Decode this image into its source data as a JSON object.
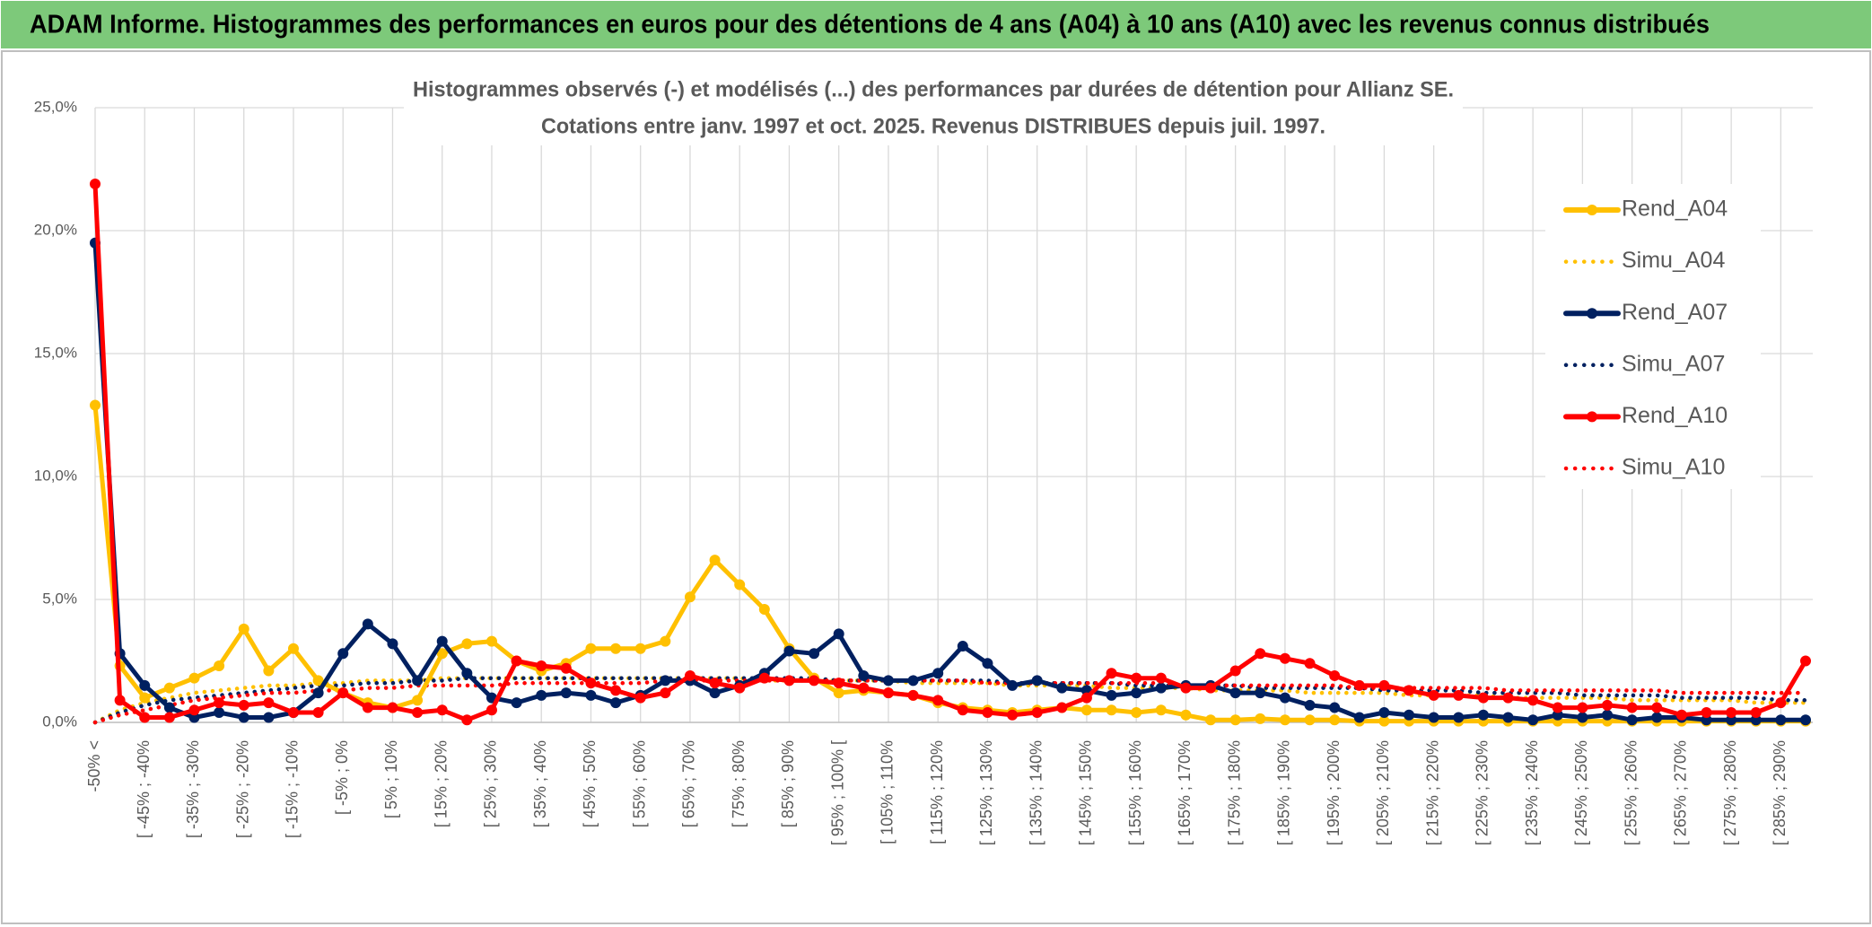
{
  "header": {
    "title": "ADAM Informe. Histogrammes des performances en euros pour des détentions de 4 ans (A04) à 10 ans (A10) avec les revenus connus distribués"
  },
  "chart_data": {
    "type": "line",
    "title": [
      "Histogrammes observés (-) et modélisés (...) des performances par durées de détention pour Allianz SE.",
      "Cotations entre janv. 1997 et oct. 2025. Revenus DISTRIBUES depuis juil. 1997."
    ],
    "categories": [
      "-50% <",
      null,
      "[ -45% ; -40%",
      null,
      "[ -35% ; -30%",
      null,
      "[ -25% ; -20%",
      null,
      "[ -15% ; -10%",
      null,
      "[ -5% ; 0%",
      null,
      "[ 5% ; 10%",
      null,
      "[ 15% ; 20%",
      null,
      "[ 25% ; 30%",
      null,
      "[ 35% ; 40%",
      null,
      "[ 45% ; 50%",
      null,
      "[ 55% ; 60%",
      null,
      "[ 65% ; 70%",
      null,
      "[ 75% ; 80%",
      null,
      "[ 85% ; 90%",
      null,
      "[ 95% ; 100% [",
      null,
      "[ 105% ; 110%",
      null,
      "[ 115% ; 120%",
      null,
      "[ 125% ; 130%",
      null,
      "[ 135% ; 140%",
      null,
      "[ 145% ; 150%",
      null,
      "[ 155% ; 160%",
      null,
      "[ 165% ; 170%",
      null,
      "[ 175% ; 180%",
      null,
      "[ 185% ; 190%",
      null,
      "[ 195% ; 200%",
      null,
      "[ 205% ; 210%",
      null,
      "[ 215% ; 220%",
      null,
      "[ 225% ; 230%",
      null,
      "[ 235% ; 240%",
      null,
      "[ 245% ; 250%",
      null,
      "[ 255% ; 260%",
      null,
      "[ 265% ; 270%",
      null,
      "[ 275% ; 280%",
      null,
      "[ 285% ; 290%",
      null
    ],
    "ylim": [
      0,
      25
    ],
    "yticks": [
      {
        "value": 0,
        "label": "0,0%"
      },
      {
        "value": 5,
        "label": "5,0%"
      },
      {
        "value": 10,
        "label": "10,0%"
      },
      {
        "value": 15,
        "label": "15,0%"
      },
      {
        "value": 20,
        "label": "20,0%"
      },
      {
        "value": 25,
        "label": "25,0%"
      }
    ],
    "grid": true,
    "legend": "right",
    "series": [
      {
        "name": "Rend_A04",
        "color": "#ffc000",
        "line_style": "solid",
        "marker": true,
        "values": [
          12.9,
          2.3,
          1.0,
          1.4,
          1.8,
          2.3,
          3.8,
          2.1,
          3.0,
          1.7,
          1.2,
          0.8,
          0.6,
          0.9,
          2.8,
          3.2,
          3.3,
          2.5,
          2.1,
          2.4,
          3.0,
          3.0,
          3.0,
          3.3,
          5.1,
          6.6,
          5.6,
          4.6,
          3.0,
          1.8,
          1.2,
          1.3,
          1.2,
          1.1,
          0.8,
          0.6,
          0.5,
          0.4,
          0.5,
          0.6,
          0.5,
          0.5,
          0.4,
          0.5,
          0.3,
          0.1,
          0.1,
          0.15,
          0.1,
          0.1,
          0.1,
          0.05,
          0.05,
          0.05,
          0.05,
          0.05,
          0.05,
          0.05,
          0.05,
          0.05,
          0.05,
          0.05,
          0.05,
          0.05,
          0.05,
          0.05,
          0.05,
          0.05,
          0.05,
          0.05
        ]
      },
      {
        "name": "Simu_A04",
        "color": "#ffc000",
        "line_style": "dotted",
        "marker": false,
        "values": [
          0,
          0.5,
          0.8,
          1.0,
          1.2,
          1.3,
          1.4,
          1.5,
          1.5,
          1.6,
          1.6,
          1.7,
          1.7,
          1.7,
          1.8,
          1.8,
          1.8,
          1.8,
          1.8,
          1.8,
          1.8,
          1.8,
          1.8,
          1.8,
          1.8,
          1.8,
          1.8,
          1.7,
          1.7,
          1.7,
          1.7,
          1.7,
          1.7,
          1.6,
          1.6,
          1.6,
          1.6,
          1.5,
          1.5,
          1.5,
          1.5,
          1.4,
          1.4,
          1.4,
          1.4,
          1.3,
          1.3,
          1.3,
          1.3,
          1.2,
          1.2,
          1.2,
          1.2,
          1.1,
          1.1,
          1.1,
          1.1,
          1.0,
          1.0,
          1.0,
          1.0,
          1.0,
          0.9,
          0.9,
          0.9,
          0.9,
          0.9,
          0.8,
          0.8,
          0.8
        ]
      },
      {
        "name": "Rend_A07",
        "color": "#002060",
        "line_style": "solid",
        "marker": true,
        "values": [
          19.5,
          2.8,
          1.5,
          0.6,
          0.2,
          0.4,
          0.2,
          0.2,
          0.4,
          1.2,
          2.8,
          4.0,
          3.2,
          1.7,
          3.3,
          2.0,
          1.0,
          0.8,
          1.1,
          1.2,
          1.1,
          0.8,
          1.1,
          1.7,
          1.7,
          1.2,
          1.5,
          2.0,
          2.9,
          2.8,
          3.6,
          1.9,
          1.7,
          1.7,
          2.0,
          3.1,
          2.4,
          1.5,
          1.7,
          1.4,
          1.3,
          1.1,
          1.2,
          1.4,
          1.5,
          1.5,
          1.2,
          1.2,
          1.0,
          0.7,
          0.6,
          0.2,
          0.4,
          0.3,
          0.2,
          0.2,
          0.3,
          0.2,
          0.1,
          0.3,
          0.2,
          0.3,
          0.1,
          0.2,
          0.2,
          0.1,
          0.1,
          0.1,
          0.1,
          0.1
        ]
      },
      {
        "name": "Simu_A07",
        "color": "#002060",
        "line_style": "dotted",
        "marker": false,
        "values": [
          0,
          0.4,
          0.7,
          0.9,
          1.0,
          1.1,
          1.2,
          1.3,
          1.4,
          1.5,
          1.5,
          1.6,
          1.6,
          1.7,
          1.7,
          1.8,
          1.8,
          1.8,
          1.8,
          1.8,
          1.8,
          1.8,
          1.8,
          1.8,
          1.8,
          1.8,
          1.8,
          1.8,
          1.8,
          1.8,
          1.7,
          1.7,
          1.7,
          1.7,
          1.7,
          1.7,
          1.7,
          1.6,
          1.6,
          1.6,
          1.6,
          1.6,
          1.5,
          1.5,
          1.5,
          1.5,
          1.5,
          1.4,
          1.4,
          1.4,
          1.4,
          1.4,
          1.3,
          1.3,
          1.3,
          1.3,
          1.2,
          1.2,
          1.2,
          1.2,
          1.1,
          1.1,
          1.1,
          1.1,
          1.0,
          1.0,
          1.0,
          1.0,
          0.9,
          0.9
        ]
      },
      {
        "name": "Rend_A10",
        "color": "#ff0000",
        "line_style": "solid",
        "marker": true,
        "values": [
          21.9,
          0.9,
          0.2,
          0.2,
          0.5,
          0.8,
          0.7,
          0.8,
          0.4,
          0.4,
          1.2,
          0.6,
          0.6,
          0.4,
          0.5,
          0.1,
          0.5,
          2.5,
          2.3,
          2.2,
          1.6,
          1.3,
          1.0,
          1.2,
          1.9,
          1.6,
          1.4,
          1.8,
          1.7,
          1.7,
          1.6,
          1.4,
          1.2,
          1.1,
          0.9,
          0.5,
          0.4,
          0.3,
          0.4,
          0.6,
          1.0,
          2.0,
          1.8,
          1.8,
          1.4,
          1.4,
          2.1,
          2.8,
          2.6,
          2.4,
          1.9,
          1.5,
          1.5,
          1.3,
          1.1,
          1.1,
          1.0,
          1.0,
          0.9,
          0.6,
          0.6,
          0.7,
          0.6,
          0.6,
          0.3,
          0.4,
          0.4,
          0.4,
          0.8,
          2.5
        ]
      },
      {
        "name": "Simu_A10",
        "color": "#ff0000",
        "line_style": "dotted",
        "marker": false,
        "values": [
          0,
          0.3,
          0.5,
          0.7,
          0.9,
          1.0,
          1.1,
          1.2,
          1.2,
          1.3,
          1.3,
          1.4,
          1.4,
          1.5,
          1.5,
          1.5,
          1.5,
          1.6,
          1.6,
          1.6,
          1.6,
          1.6,
          1.6,
          1.7,
          1.7,
          1.7,
          1.7,
          1.7,
          1.7,
          1.7,
          1.7,
          1.7,
          1.7,
          1.7,
          1.7,
          1.7,
          1.6,
          1.6,
          1.6,
          1.6,
          1.6,
          1.6,
          1.6,
          1.6,
          1.5,
          1.5,
          1.5,
          1.5,
          1.5,
          1.5,
          1.5,
          1.4,
          1.4,
          1.4,
          1.4,
          1.4,
          1.4,
          1.3,
          1.3,
          1.3,
          1.3,
          1.3,
          1.3,
          1.3,
          1.2,
          1.2,
          1.2,
          1.2,
          1.2,
          1.2
        ]
      }
    ]
  }
}
